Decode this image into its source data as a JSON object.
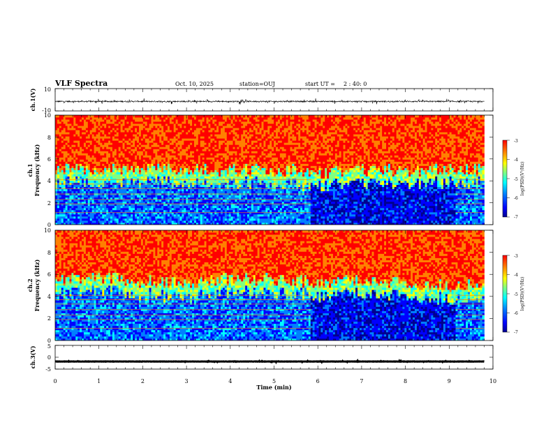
{
  "header": {
    "title": "VLF Spectra",
    "date": "Oct. 10, 2025",
    "station": "station=OUJ",
    "start_label": "start  UT =",
    "start_value": "2 : 40: 0"
  },
  "chart_data": [
    {
      "type": "line",
      "name": "ch1-waveform",
      "ylabel": "ch.1(V)",
      "ylim": [
        -10,
        10
      ],
      "y_ticks": [
        "10",
        "-10"
      ],
      "baseline": -1.5,
      "noise_amplitude": 1.2,
      "xlim": [
        0,
        10
      ]
    },
    {
      "type": "heatmap",
      "name": "ch1-spectrogram",
      "ylabel_line1": "ch.1",
      "ylabel_line2": "Frequency (kHz)",
      "ylim": [
        0,
        10
      ],
      "y_ticks": [
        "0",
        "2",
        "4",
        "6",
        "8",
        "10"
      ],
      "xlim": [
        0,
        10
      ],
      "data_end_min": 9.8,
      "boundary_khz_by_minute": [
        [
          0,
          5.0
        ],
        [
          1,
          5.2
        ],
        [
          2,
          5.1
        ],
        [
          3,
          5.0
        ],
        [
          4,
          5.1
        ],
        [
          5,
          5.0
        ],
        [
          6,
          4.8
        ],
        [
          7,
          4.9
        ],
        [
          8,
          5.0
        ],
        [
          9,
          5.1
        ],
        [
          9.8,
          5.0
        ]
      ],
      "colorbar": {
        "label": "log(PSD)(V²/Hz)",
        "ticks": [
          "-3",
          "-4",
          "-5",
          "-6",
          "-7"
        ],
        "range": [
          -7,
          -3
        ]
      }
    },
    {
      "type": "heatmap",
      "name": "ch2-spectrogram",
      "ylabel_line1": "ch.2",
      "ylabel_line2": "Frequency (kHz)",
      "ylim": [
        0,
        10
      ],
      "y_ticks": [
        "0",
        "2",
        "4",
        "6",
        "8",
        "10"
      ],
      "xlim": [
        0,
        10
      ],
      "data_end_min": 9.8,
      "boundary_khz_by_minute": [
        [
          0,
          5.5
        ],
        [
          1,
          5.8
        ],
        [
          2,
          5.4
        ],
        [
          3,
          5.2
        ],
        [
          4,
          5.6
        ],
        [
          5,
          5.5
        ],
        [
          6,
          5.3
        ],
        [
          7,
          5.6
        ],
        [
          8,
          5.2
        ],
        [
          9,
          5.0
        ],
        [
          9.8,
          5.2
        ]
      ],
      "colorbar": {
        "label": "log(PSD)(V²/Hz)",
        "ticks": [
          "-3",
          "-4",
          "-5",
          "-6",
          "-7"
        ],
        "range": [
          -7,
          -3
        ]
      }
    },
    {
      "type": "line",
      "name": "ch3-waveform",
      "ylabel": "ch.3(V)",
      "ylim": [
        -5,
        5
      ],
      "y_ticks": [
        "5",
        "0",
        "-5"
      ],
      "baseline": -1.8,
      "noise_amplitude": 0.1,
      "xlim": [
        0,
        10
      ]
    }
  ],
  "x_axis": {
    "label": "Time  (min)",
    "ticks": [
      "0",
      "1",
      "2",
      "3",
      "4",
      "5",
      "6",
      "7",
      "8",
      "9",
      "10"
    ]
  },
  "colors": {
    "colormap": [
      "#00008f",
      "#0000ff",
      "#0080ff",
      "#00ffff",
      "#80ff80",
      "#ffff00",
      "#ff8000",
      "#ff0000"
    ],
    "line": "#000000"
  }
}
